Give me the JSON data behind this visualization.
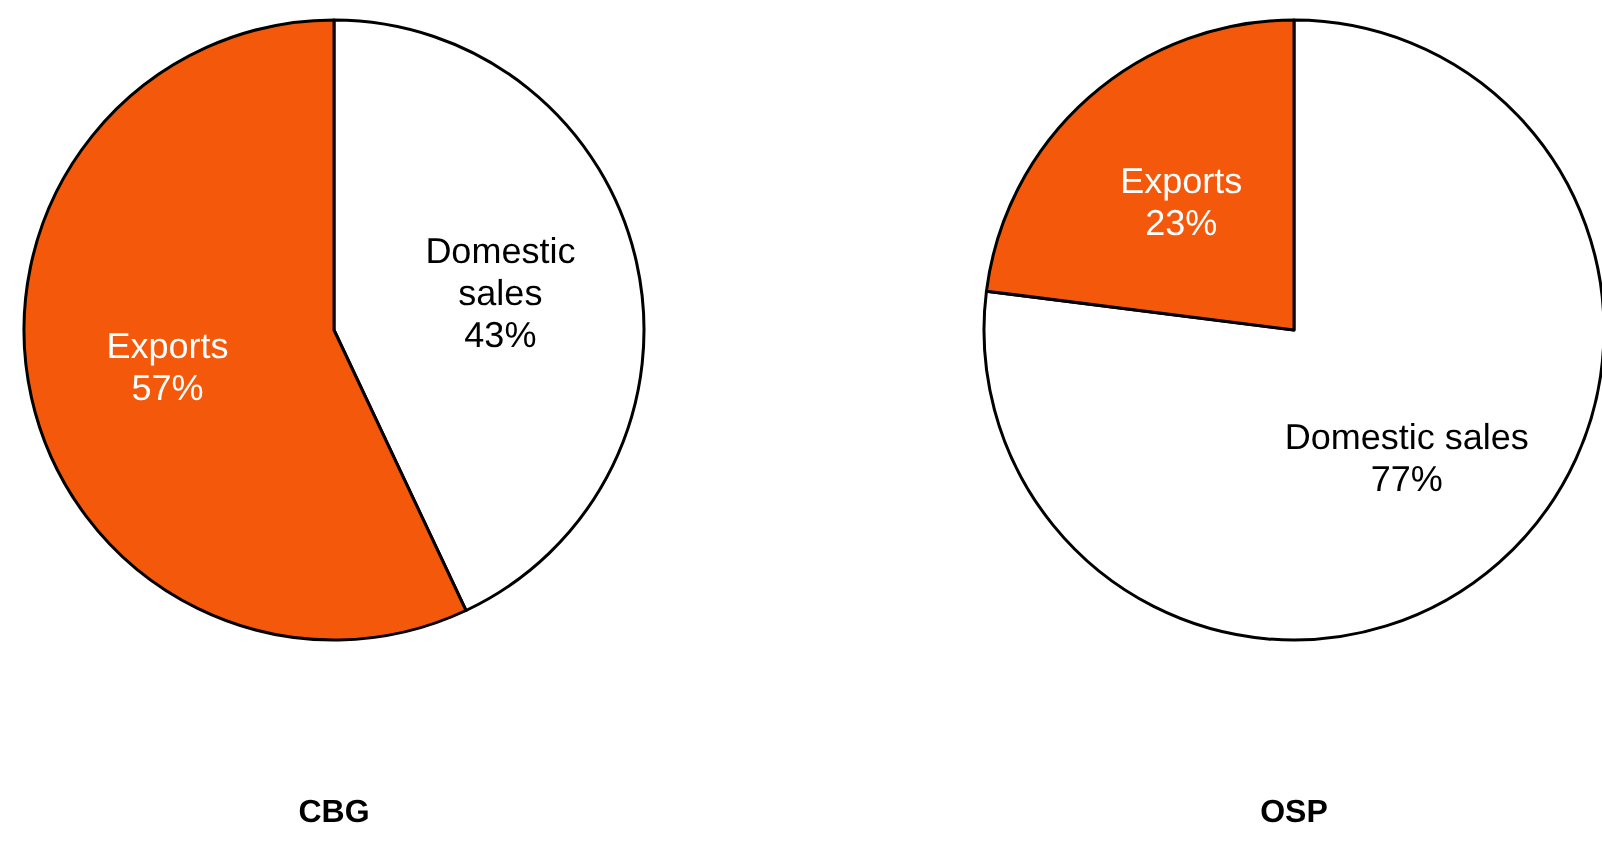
{
  "chart_data": [
    {
      "type": "pie",
      "title": "CBG",
      "categories": [
        "Domestic sales",
        "Exports"
      ],
      "values": [
        43,
        57
      ],
      "colors": [
        "#ffffff",
        "#f4580b"
      ],
      "value_labels": [
        "43%",
        "57%"
      ]
    },
    {
      "type": "pie",
      "title": "OSP",
      "categories": [
        "Domestic sales",
        "Exports"
      ],
      "values": [
        77,
        23
      ],
      "colors": [
        "#ffffff",
        "#f4580b"
      ],
      "value_labels": [
        "77%",
        "23%"
      ]
    }
  ]
}
